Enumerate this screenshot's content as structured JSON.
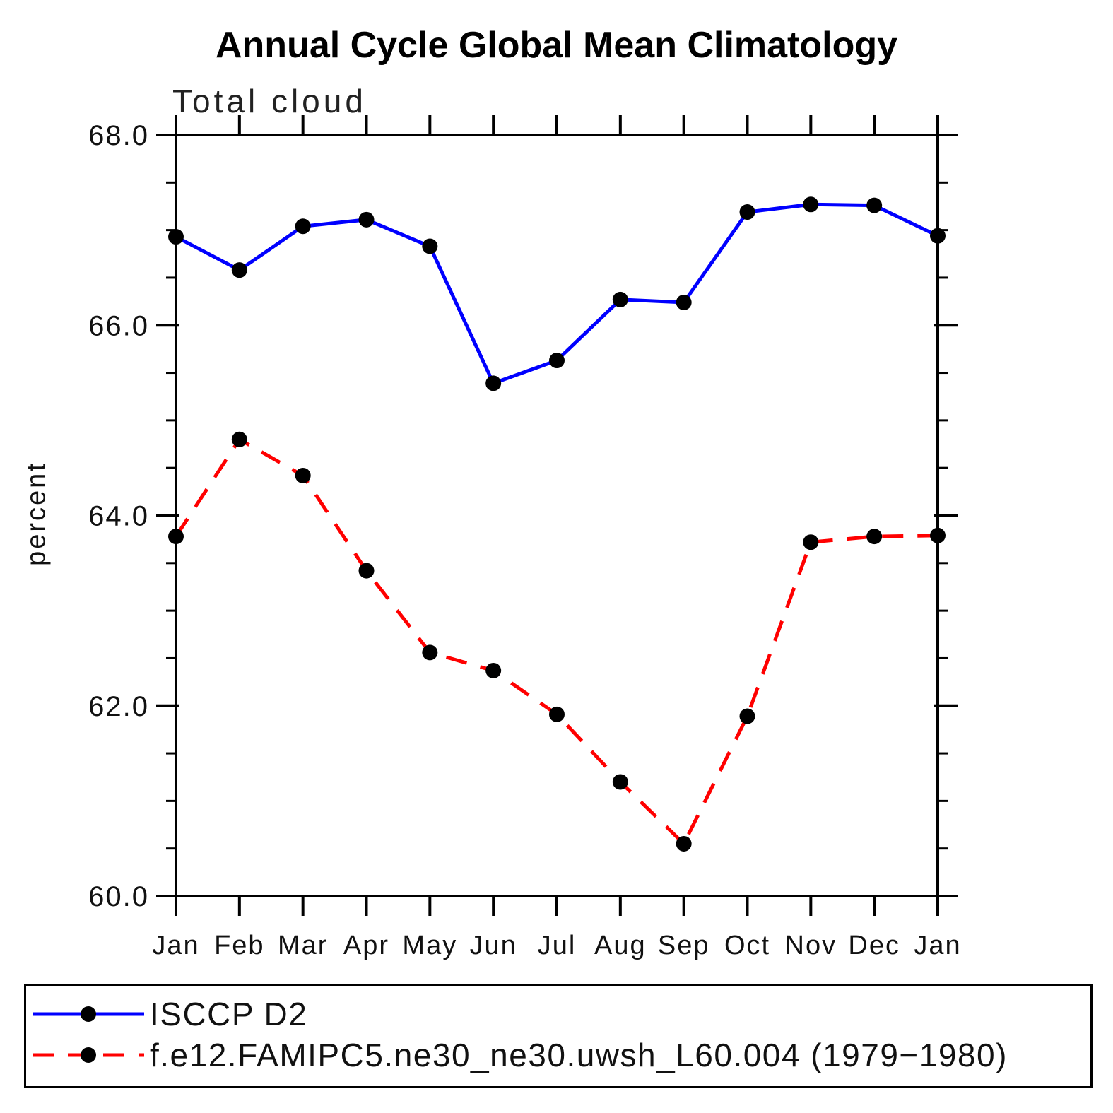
{
  "title": "Annual Cycle Global Mean Climatology",
  "chart_data": {
    "type": "line",
    "title": "Annual Cycle Global Mean Climatology",
    "subtitle": "Total cloud",
    "ylabel": "percent",
    "xlabel": "",
    "x_categories": [
      "Jan",
      "Feb",
      "Mar",
      "Apr",
      "May",
      "Jun",
      "Jul",
      "Aug",
      "Sep",
      "Oct",
      "Nov",
      "Dec",
      "Jan"
    ],
    "ylim": [
      60.0,
      68.0
    ],
    "y_major_ticks": [
      68.0,
      66.0,
      64.0,
      62.0,
      60.0
    ],
    "y_major_labels": [
      "68.0",
      "66.0",
      "64.0",
      "62.0",
      "60.0"
    ],
    "y_minor_step": 0.5,
    "grid": false,
    "legend_position": "bottom",
    "axis_color": "#000000",
    "marker_color": "#000000",
    "series": [
      {
        "name": "ISCCP D2",
        "color": "#0000ff",
        "style": "solid",
        "values": [
          66.93,
          66.58,
          67.04,
          67.11,
          66.83,
          65.39,
          65.63,
          66.27,
          66.24,
          67.19,
          67.27,
          67.26,
          66.94
        ]
      },
      {
        "name": "f.e12.FAMIPC5.ne30_ne30.uwsh_L60.004 (1979−1980)",
        "color": "#ff0000",
        "style": "dashed",
        "values": [
          63.78,
          64.8,
          64.42,
          63.42,
          62.56,
          62.37,
          61.91,
          61.2,
          60.55,
          61.89,
          63.72,
          63.78,
          63.79
        ]
      }
    ]
  }
}
